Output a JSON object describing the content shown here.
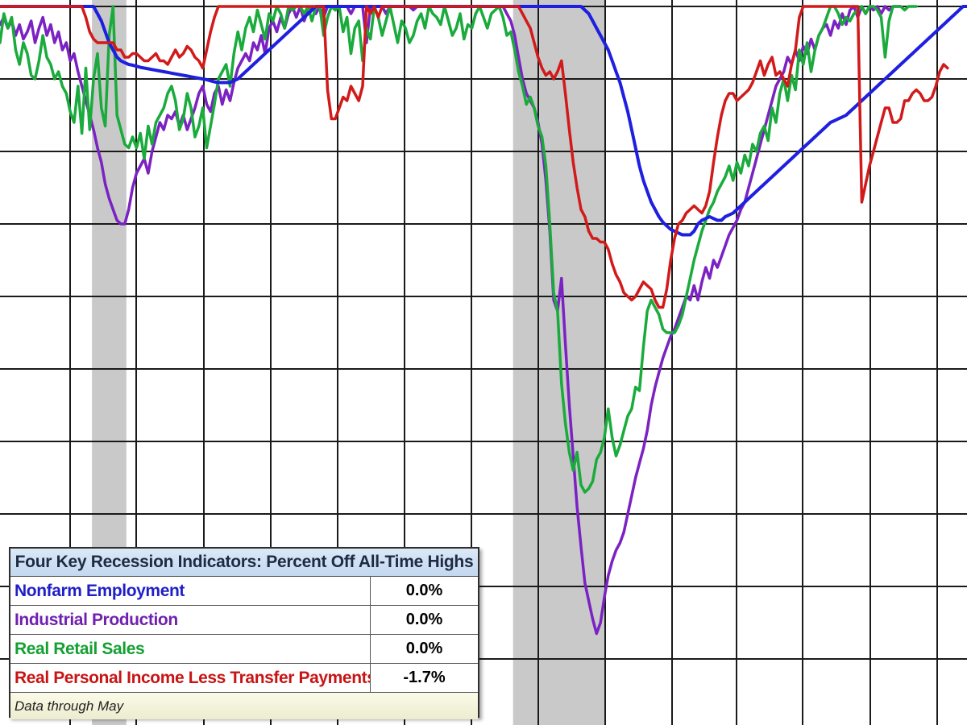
{
  "chart_data": {
    "type": "line",
    "title": "",
    "xlabel": "",
    "ylabel": "",
    "xlim": [
      0,
      239
    ],
    "ylim": [
      -20,
      0
    ],
    "grid": true,
    "shaded_periods": [
      [
        0,
        0
      ],
      [
        0,
        0
      ]
    ],
    "series": [
      {
        "name": "Nonfarm Employment",
        "color": "#1f1fe0",
        "values": [
          0,
          0,
          0,
          0,
          0,
          0,
          0,
          0,
          0,
          0,
          0,
          0,
          0,
          0,
          0,
          0,
          0,
          0,
          0,
          0,
          0,
          0,
          0,
          0,
          0,
          -0.2,
          -0.4,
          -0.7,
          -1.0,
          -1.2,
          -1.4,
          -1.5,
          -1.55,
          -1.6,
          -1.62,
          -1.65,
          -1.68,
          -1.7,
          -1.72,
          -1.74,
          -1.76,
          -1.78,
          -1.8,
          -1.82,
          -1.84,
          -1.86,
          -1.88,
          -1.9,
          -1.92,
          -1.94,
          -1.96,
          -1.98,
          -2.0,
          -2.02,
          -2.05,
          -2.08,
          -2.1,
          -2.1,
          -2.1,
          -2.1,
          -2.05,
          -2.0,
          -1.9,
          -1.8,
          -1.7,
          -1.6,
          -1.5,
          -1.4,
          -1.3,
          -1.2,
          -1.1,
          -1.0,
          -0.9,
          -0.8,
          -0.7,
          -0.6,
          -0.5,
          -0.4,
          -0.3,
          -0.2,
          -0.1,
          0,
          0,
          0,
          0,
          0,
          0,
          0,
          0,
          0,
          0,
          0,
          0,
          0,
          0,
          0,
          0,
          0,
          0,
          0,
          0,
          0,
          0,
          0,
          0,
          0,
          0,
          0,
          0,
          0,
          0,
          0,
          0,
          0,
          0,
          0,
          0,
          0,
          0,
          0,
          0,
          0,
          0,
          0,
          0,
          0,
          0,
          0,
          0,
          0,
          0,
          0,
          0,
          0,
          0,
          0,
          0,
          0,
          0,
          0,
          0,
          0,
          0,
          0,
          0,
          0,
          0,
          0,
          0,
          0,
          -0.1,
          -0.2,
          -0.4,
          -0.6,
          -0.8,
          -1.0,
          -1.2,
          -1.5,
          -1.8,
          -2.1,
          -2.5,
          -2.9,
          -3.4,
          -3.9,
          -4.4,
          -4.8,
          -5.1,
          -5.4,
          -5.6,
          -5.8,
          -5.95,
          -6.05,
          -6.15,
          -6.2,
          -6.25,
          -6.3,
          -6.3,
          -6.3,
          -6.2,
          -6.0,
          -5.9,
          -5.85,
          -5.8,
          -5.85,
          -5.9,
          -5.9,
          -5.8,
          -5.75,
          -5.7,
          -5.6,
          -5.5,
          -5.4,
          -5.3,
          -5.2,
          -5.1,
          -5.0,
          -4.9,
          -4.8,
          -4.7,
          -4.6,
          -4.5,
          -4.4,
          -4.3,
          -4.2,
          -4.1,
          -4.0,
          -3.9,
          -3.8,
          -3.7,
          -3.6,
          -3.5,
          -3.4,
          -3.3,
          -3.2,
          -3.15,
          -3.1,
          -3.05,
          -3.0,
          -2.9,
          -2.8,
          -2.7,
          -2.6,
          -2.5,
          -2.4,
          -2.3,
          -2.2,
          -2.1,
          -2.0,
          -1.9,
          -1.8,
          -1.7,
          -1.6,
          -1.5,
          -1.4,
          -1.3,
          -1.2,
          -1.1,
          -1.0,
          -0.9,
          -0.8,
          -0.7,
          -0.6,
          -0.5,
          -0.4,
          -0.3,
          -0.2,
          -0.1,
          0,
          0
        ]
      },
      {
        "name": "Industrial Production",
        "color": "#7b22c2",
        "values": [
          -0.5,
          -0.3,
          -0.6,
          -0.4,
          -0.8,
          -0.5,
          -0.9,
          -0.7,
          -0.4,
          -1.0,
          -0.6,
          -0.3,
          -0.8,
          -0.5,
          -1.0,
          -0.7,
          -1.2,
          -1.0,
          -1.5,
          -1.3,
          -1.8,
          -2.2,
          -2.6,
          -3.0,
          -3.4,
          -3.9,
          -4.3,
          -4.9,
          -5.3,
          -5.6,
          -5.9,
          -6.0,
          -6.0,
          -5.6,
          -5.0,
          -4.6,
          -4.4,
          -4.2,
          -4.6,
          -4.0,
          -3.6,
          -3.2,
          -3.4,
          -3.0,
          -3.1,
          -2.9,
          -3.3,
          -3.0,
          -3.4,
          -3.1,
          -2.8,
          -2.4,
          -2.2,
          -2.7,
          -2.9,
          -2.4,
          -2.2,
          -2.7,
          -2.3,
          -2.6,
          -2.1,
          -1.7,
          -1.5,
          -1.3,
          -1.5,
          -1.0,
          -1.2,
          -0.8,
          -1.3,
          -0.6,
          -0.4,
          -0.7,
          -0.3,
          -0.6,
          -0.2,
          0,
          -0.3,
          0,
          -0.4,
          -0.1,
          0,
          -0.2,
          0,
          -0.3,
          0,
          0,
          -0.1,
          0,
          0,
          0,
          -0.2,
          0,
          0,
          0,
          -1.0,
          0,
          0,
          0,
          0,
          -0.2,
          0,
          0,
          0,
          0,
          0,
          0,
          -0.1,
          0,
          0,
          0,
          0,
          0,
          0,
          0,
          0,
          0,
          0,
          0,
          0,
          0,
          0,
          0,
          0,
          0,
          0,
          0,
          0,
          0,
          0,
          0,
          -0.2,
          -0.4,
          -0.8,
          -1.4,
          -2.0,
          -2.4,
          -2.6,
          -2.8,
          -3.2,
          -3.8,
          -4.8,
          -6.2,
          -8.1,
          -8.4,
          -7.5,
          -9.3,
          -11.0,
          -12.4,
          -13.8,
          -14.9,
          -15.9,
          -16.4,
          -16.9,
          -17.3,
          -17.0,
          -16.3,
          -15.7,
          -15.3,
          -15.0,
          -14.8,
          -14.5,
          -14.0,
          -13.5,
          -13.0,
          -12.6,
          -12.2,
          -11.7,
          -11.0,
          -10.5,
          -10.1,
          -9.7,
          -9.4,
          -9.1,
          -8.9,
          -8.6,
          -8.3,
          -8.0,
          -8.1,
          -7.7,
          -8.1,
          -7.6,
          -7.2,
          -7.5,
          -7.0,
          -7.2,
          -6.9,
          -6.6,
          -6.3,
          -6.1,
          -5.9,
          -5.6,
          -5.4,
          -5.0,
          -4.6,
          -4.2,
          -3.8,
          -3.4,
          -3.0,
          -2.6,
          -2.2,
          -2.0,
          -1.8,
          -1.4,
          -1.6,
          -1.2,
          -1.5,
          -1.1,
          -1.3,
          -0.9,
          -1.2,
          -0.8,
          -0.6,
          -0.5,
          -0.8,
          -0.4,
          -0.6,
          -0.2,
          -0.5,
          -0.1,
          0,
          -0.3,
          0,
          -0.2,
          0,
          -0.1,
          0,
          -0.2,
          0,
          -0.1,
          0,
          0,
          0
        ]
      },
      {
        "name": "Real Retail Sales",
        "color": "#1aab3c",
        "values": [
          -1.0,
          -0.2,
          -0.6,
          -0.3,
          -1.2,
          -1.6,
          -1.0,
          -1.3,
          -1.9,
          -2.0,
          -1.5,
          -0.8,
          -1.4,
          -1.6,
          -2.0,
          -1.8,
          -2.2,
          -2.4,
          -2.9,
          -3.2,
          -2.2,
          -3.5,
          -1.7,
          -3.4,
          -2.0,
          -1.3,
          -2.8,
          -3.3,
          -0.8,
          0,
          -3.0,
          -3.4,
          -3.8,
          -3.9,
          -3.6,
          -3.9,
          -3.5,
          -4.2,
          -3.3,
          -3.8,
          -3.2,
          -3.0,
          -2.8,
          -2.4,
          -2.2,
          -2.6,
          -3.4,
          -3.1,
          -2.4,
          -2.8,
          -3.6,
          -3.3,
          -2.8,
          -3.9,
          -3.3,
          -2.7,
          -2.0,
          -1.8,
          -1.6,
          -2.2,
          -1.3,
          -0.7,
          -1.2,
          -0.6,
          -0.3,
          -0.7,
          -0.1,
          -0.5,
          -0.9,
          -0.2,
          -0.4,
          0,
          -0.2,
          -0.6,
          0,
          -0.1,
          0,
          0,
          -0.2,
          0,
          -0.4,
          0,
          0,
          -0.8,
          -0.3,
          0,
          -0.1,
          0,
          -0.7,
          -0.3,
          -1.3,
          -0.6,
          -0.4,
          -1.5,
          -0.6,
          -0.9,
          0,
          -0.3,
          -0.8,
          -0.4,
          0,
          -0.5,
          -1.0,
          -0.4,
          -0.6,
          -1.0,
          -0.8,
          -0.4,
          -0.2,
          -0.6,
          0,
          -0.2,
          -0.3,
          -0.5,
          0,
          -0.4,
          -0.8,
          -0.6,
          -0.2,
          -0.9,
          -0.5,
          -0.6,
          -0.2,
          0,
          -0.3,
          -0.6,
          -0.2,
          -0.1,
          0,
          -0.3,
          -0.8,
          -0.7,
          -1.2,
          -1.8,
          -2.2,
          -2.7,
          -2.5,
          -2.8,
          -3.3,
          -3.6,
          -4.4,
          -6.0,
          -7.9,
          -8.4,
          -10.4,
          -11.5,
          -12.3,
          -12.8,
          -12.3,
          -13.2,
          -13.4,
          -13.3,
          -13.1,
          -12.5,
          -12.3,
          -11.9,
          -11.1,
          -11.9,
          -12.4,
          -12.1,
          -11.7,
          -11.3,
          -11.1,
          -10.5,
          -10.6,
          -9.4,
          -8.4,
          -8.1,
          -8.3,
          -8.5,
          -8.9,
          -9.0,
          -9.0,
          -9.0,
          -8.8,
          -8.5,
          -8.0,
          -7.5,
          -7.0,
          -6.6,
          -6.2,
          -5.9,
          -5.6,
          -5.4,
          -5.1,
          -4.9,
          -4.7,
          -4.4,
          -4.8,
          -4.3,
          -4.6,
          -4.1,
          -4.4,
          -3.8,
          -4.0,
          -3.5,
          -3.3,
          -3.7,
          -2.8,
          -3.2,
          -2.4,
          -2.0,
          -2.6,
          -1.9,
          -2.3,
          -1.2,
          -1.6,
          -1.0,
          -1.8,
          -1.2,
          -0.8,
          -0.6,
          -0.3,
          0,
          0,
          -0.2,
          -0.5,
          -0.3,
          -0.4,
          -0.2,
          -0.1,
          0,
          -0.2,
          0,
          0,
          -0.1,
          -0.3,
          -1.4,
          -0.4,
          0,
          0,
          0,
          -0.1,
          0,
          0,
          0
        ]
      },
      {
        "name": "Real Personal Income Less Transfer Payments",
        "color": "#d21a1a",
        "values": [
          0,
          0,
          0,
          0,
          0,
          0,
          0,
          0,
          0,
          0,
          0,
          0,
          0,
          0,
          0,
          0,
          0,
          0,
          0,
          0,
          0,
          0,
          -0.3,
          -0.7,
          -0.9,
          -1.0,
          -1.0,
          -1.0,
          -1.0,
          -1.0,
          -1.2,
          -1.2,
          -1.4,
          -1.4,
          -1.3,
          -1.3,
          -1.4,
          -1.5,
          -1.5,
          -1.4,
          -1.3,
          -1.5,
          -1.5,
          -1.6,
          -1.4,
          -1.2,
          -1.4,
          -1.3,
          -1.1,
          -1.2,
          -1.4,
          -1.5,
          -1.7,
          -1.2,
          -0.7,
          -0.3,
          0,
          0,
          0,
          0,
          0,
          0,
          0,
          0,
          0,
          0,
          0,
          0,
          0,
          0,
          0,
          0,
          0,
          0,
          0,
          0,
          0,
          0,
          0,
          0,
          0,
          0,
          0,
          0,
          -2.3,
          -3.1,
          -3.1,
          -2.8,
          -2.5,
          -2.6,
          -2.2,
          -2.4,
          -2.6,
          -2.2,
          0,
          -0.2,
          0,
          -0.3,
          0,
          0,
          0,
          0,
          0,
          0,
          0,
          0,
          0,
          0,
          0,
          0,
          0,
          0,
          0,
          0,
          0,
          0,
          0,
          0,
          0,
          0,
          0,
          0,
          0,
          0,
          0,
          0,
          0,
          0,
          0,
          0,
          0,
          0,
          0,
          0,
          -0.2,
          -0.4,
          -0.6,
          -1.0,
          -1.4,
          -1.7,
          -1.9,
          -1.8,
          -2.0,
          -1.8,
          -1.5,
          -2.4,
          -3.4,
          -4.3,
          -5.0,
          -5.6,
          -5.8,
          -6.2,
          -6.4,
          -6.4,
          -6.5,
          -6.5,
          -6.7,
          -7.1,
          -7.4,
          -7.6,
          -7.9,
          -8.0,
          -8.1,
          -8.0,
          -7.8,
          -7.6,
          -7.7,
          -7.8,
          -8.1,
          -8.3,
          -8.3,
          -7.8,
          -7.0,
          -6.4,
          -6.0,
          -5.9,
          -5.7,
          -5.6,
          -5.5,
          -5.6,
          -5.7,
          -5.5,
          -5.1,
          -4.3,
          -3.6,
          -3.0,
          -2.6,
          -2.4,
          -2.4,
          -2.6,
          -2.5,
          -2.4,
          -2.3,
          -2.1,
          -1.8,
          -1.5,
          -1.9,
          -1.6,
          -1.4,
          -1.9,
          -1.8,
          -2.0,
          -2.2,
          -1.6,
          -1.2,
          -0.3,
          0,
          0,
          0,
          0,
          0,
          0,
          0,
          0,
          0,
          0,
          0,
          0,
          0,
          0,
          0,
          -5.4,
          -4.9,
          -4.4,
          -4.0,
          -3.6,
          -3.2,
          -2.8,
          -2.8,
          -3.2,
          -3.2,
          -3.1,
          -2.6,
          -2.6,
          -2.4,
          -2.3,
          -2.4,
          -2.6,
          -2.6,
          -2.5,
          -2.2,
          -1.8,
          -1.6,
          -1.7
        ]
      }
    ]
  },
  "legend_table": {
    "title": "Four Key Recession Indicators: Percent Off All-Time Highs",
    "rows": [
      {
        "label": "Nonfarm Employment",
        "value": "0.0%",
        "color": "#1f1fc8"
      },
      {
        "label": "Industrial Production",
        "value": "0.0%",
        "color": "#7020b0"
      },
      {
        "label": "Real Retail Sales",
        "value": "0.0%",
        "color": "#14a032"
      },
      {
        "label": "Real Personal Income Less Transfer Payments",
        "value": "-1.7%",
        "color": "#c81414"
      }
    ],
    "note": "Data through May"
  }
}
